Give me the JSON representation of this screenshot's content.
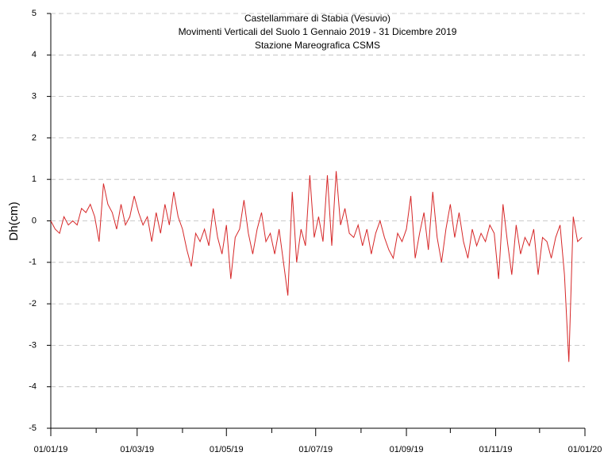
{
  "chart_data": {
    "type": "line",
    "title": [
      "Castellammare di Stabia (Vesuvio)",
      "Movimenti Verticali del Suolo 1 Gennaio 2019 - 31 Dicembre 2019",
      "Stazione Mareografica CSMS"
    ],
    "y_label": "Dh(cm)",
    "x": [
      "2019-01-01",
      "2019-01-04",
      "2019-01-07",
      "2019-01-10",
      "2019-01-13",
      "2019-01-16",
      "2019-01-19",
      "2019-01-22",
      "2019-01-25",
      "2019-01-28",
      "2019-01-31",
      "2019-02-03",
      "2019-02-06",
      "2019-02-09",
      "2019-02-12",
      "2019-02-15",
      "2019-02-18",
      "2019-02-21",
      "2019-02-24",
      "2019-02-27",
      "2019-03-02",
      "2019-03-05",
      "2019-03-08",
      "2019-03-11",
      "2019-03-14",
      "2019-03-17",
      "2019-03-20",
      "2019-03-23",
      "2019-03-26",
      "2019-03-29",
      "2019-04-01",
      "2019-04-04",
      "2019-04-07",
      "2019-04-10",
      "2019-04-13",
      "2019-04-16",
      "2019-04-19",
      "2019-04-22",
      "2019-04-25",
      "2019-04-28",
      "2019-05-01",
      "2019-05-04",
      "2019-05-07",
      "2019-05-10",
      "2019-05-13",
      "2019-05-16",
      "2019-05-19",
      "2019-05-22",
      "2019-05-25",
      "2019-05-28",
      "2019-05-31",
      "2019-06-03",
      "2019-06-06",
      "2019-06-09",
      "2019-06-12",
      "2019-06-15",
      "2019-06-18",
      "2019-06-21",
      "2019-06-24",
      "2019-06-27",
      "2019-06-30",
      "2019-07-03",
      "2019-07-06",
      "2019-07-09",
      "2019-07-12",
      "2019-07-15",
      "2019-07-18",
      "2019-07-21",
      "2019-07-24",
      "2019-07-27",
      "2019-07-30",
      "2019-08-02",
      "2019-08-05",
      "2019-08-08",
      "2019-08-11",
      "2019-08-14",
      "2019-08-17",
      "2019-08-20",
      "2019-08-23",
      "2019-08-26",
      "2019-08-29",
      "2019-09-01",
      "2019-09-04",
      "2019-09-07",
      "2019-09-10",
      "2019-09-13",
      "2019-09-16",
      "2019-09-19",
      "2019-09-22",
      "2019-09-25",
      "2019-09-28",
      "2019-10-01",
      "2019-10-04",
      "2019-10-07",
      "2019-10-10",
      "2019-10-13",
      "2019-10-16",
      "2019-10-19",
      "2019-10-22",
      "2019-10-25",
      "2019-10-28",
      "2019-10-31",
      "2019-11-03",
      "2019-11-06",
      "2019-11-09",
      "2019-11-12",
      "2019-11-15",
      "2019-11-18",
      "2019-11-21",
      "2019-11-24",
      "2019-11-27",
      "2019-11-30",
      "2019-12-03",
      "2019-12-06",
      "2019-12-09",
      "2019-12-12",
      "2019-12-15",
      "2019-12-18",
      "2019-12-21",
      "2019-12-24",
      "2019-12-27",
      "2019-12-30"
    ],
    "series": [
      {
        "color": "#d62728",
        "values": [
          0,
          -0.2,
          -0.3,
          0.1,
          -0.1,
          0,
          -0.1,
          0.3,
          0.2,
          0.4,
          0.1,
          -0.5,
          0.9,
          0.4,
          0.2,
          -0.2,
          0.4,
          -0.1,
          0.1,
          0.6,
          0.2,
          -0.1,
          0.1,
          -0.5,
          0.2,
          -0.3,
          0.4,
          -0.1,
          0.7,
          0.1,
          -0.2,
          -0.7,
          -1.1,
          -0.3,
          -0.5,
          -0.2,
          -0.6,
          0.3,
          -0.4,
          -0.8,
          -0.1,
          -1.4,
          -0.4,
          -0.2,
          0.5,
          -0.3,
          -0.8,
          -0.2,
          0.2,
          -0.5,
          -0.3,
          -0.8,
          -0.2,
          -1.0,
          -1.8,
          0.7,
          -1.0,
          -0.2,
          -0.6,
          1.1,
          -0.4,
          0.1,
          -0.5,
          1.1,
          -0.6,
          1.2,
          -0.1,
          0.3,
          -0.3,
          -0.4,
          -0.1,
          -0.6,
          -0.2,
          -0.8,
          -0.3,
          0,
          -0.4,
          -0.7,
          -0.9,
          -0.3,
          -0.5,
          -0.2,
          0.6,
          -0.9,
          -0.3,
          0.2,
          -0.7,
          0.7,
          -0.4,
          -1.0,
          -0.2,
          0.4,
          -0.4,
          0.2,
          -0.5,
          -0.9,
          -0.2,
          -0.6,
          -0.3,
          -0.5,
          -0.1,
          -0.3,
          -1.4,
          0.4,
          -0.5,
          -1.3,
          -0.1,
          -0.8,
          -0.4,
          -0.6,
          -0.2,
          -1.3,
          -0.4,
          -0.5,
          -0.9,
          -0.4,
          -0.1,
          -1.3,
          -3.4,
          0.1,
          -0.5,
          -0.4
        ]
      }
    ],
    "xlim": [
      "2019-01-01",
      "2020-01-01"
    ],
    "xticks": [
      {
        "value": "2019-01-01",
        "label": "01/01/19"
      },
      {
        "value": "2019-03-01",
        "label": "01/03/19"
      },
      {
        "value": "2019-05-01",
        "label": "01/05/19"
      },
      {
        "value": "2019-07-01",
        "label": "01/07/19"
      },
      {
        "value": "2019-09-01",
        "label": "01/09/19"
      },
      {
        "value": "2019-11-01",
        "label": "01/11/19"
      },
      {
        "value": "2020-01-01",
        "label": "01/01/20"
      }
    ],
    "xminorticks": [
      "2019-02-01",
      "2019-04-01",
      "2019-06-01",
      "2019-08-01",
      "2019-10-01",
      "2019-12-01"
    ],
    "ylim": [
      -5,
      5
    ],
    "yticks": [
      -5,
      -4,
      -3,
      -2,
      -1,
      0,
      1,
      2,
      3,
      4,
      5
    ],
    "grid": true
  }
}
